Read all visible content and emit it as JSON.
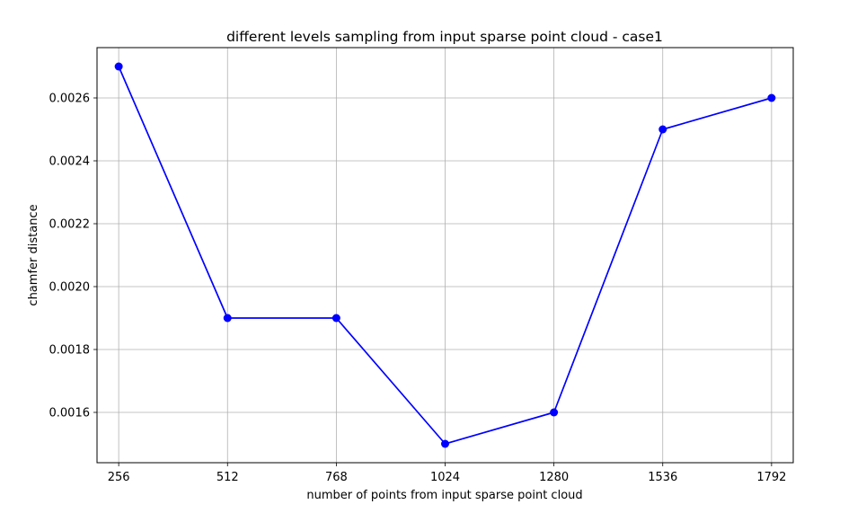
{
  "chart_data": {
    "type": "line",
    "title": "different levels sampling from input sparse point cloud - case1",
    "xlabel": "number of points from input sparse point cloud",
    "ylabel": "chamfer distance",
    "x": [
      256,
      512,
      768,
      1024,
      1280,
      1536,
      1792
    ],
    "x_tick_labels": [
      "256",
      "512",
      "768",
      "1024",
      "1280",
      "1536",
      "1792"
    ],
    "y_ticks": [
      0.0016,
      0.0018,
      0.002,
      0.0022,
      0.0024,
      0.0026
    ],
    "y_tick_labels": [
      "0.0016",
      "0.0018",
      "0.0020",
      "0.0022",
      "0.0024",
      "0.0026"
    ],
    "xlim": [
      205,
      1843
    ],
    "ylim": [
      0.00144,
      0.00276
    ],
    "grid": true,
    "legend": "none",
    "series": [
      {
        "values": [
          0.0027,
          0.0019,
          0.0019,
          0.0015,
          0.0016,
          0.0025,
          0.0026
        ],
        "color": "#0000ff",
        "marker": "circle"
      }
    ]
  }
}
